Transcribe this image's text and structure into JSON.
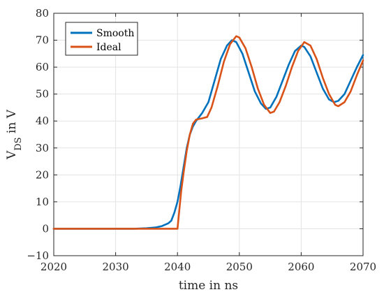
{
  "chart_data": {
    "type": "line",
    "xlabel": "time in ns",
    "ylabel_main": "V",
    "ylabel_sub": "DS",
    "ylabel_tail": " in V",
    "xlim": [
      2020,
      2070
    ],
    "ylim": [
      -10,
      80
    ],
    "xticks": [
      2020,
      2030,
      2040,
      2050,
      2060,
      2070
    ],
    "yticks": [
      -10,
      0,
      10,
      20,
      30,
      40,
      50,
      60,
      70,
      80
    ],
    "grid": true,
    "legend_position": "top-left",
    "series": [
      {
        "name": "Smooth",
        "color": "#0072BD",
        "points": [
          [
            2020,
            0
          ],
          [
            2033,
            0
          ],
          [
            2035,
            0.2
          ],
          [
            2036.5,
            0.5
          ],
          [
            2037.5,
            1
          ],
          [
            2038.5,
            2
          ],
          [
            2039,
            3
          ],
          [
            2039.5,
            6
          ],
          [
            2040,
            10
          ],
          [
            2040.5,
            16
          ],
          [
            2041,
            23
          ],
          [
            2041.5,
            30
          ],
          [
            2042,
            35
          ],
          [
            2042.5,
            38
          ],
          [
            2043,
            40
          ],
          [
            2044,
            43
          ],
          [
            2045,
            47
          ],
          [
            2046,
            55
          ],
          [
            2047,
            63
          ],
          [
            2048,
            68
          ],
          [
            2048.8,
            70
          ],
          [
            2049.5,
            69.3
          ],
          [
            2050.5,
            65
          ],
          [
            2051.5,
            58
          ],
          [
            2052.5,
            51
          ],
          [
            2053.5,
            46.5
          ],
          [
            2054.3,
            44.5
          ],
          [
            2055,
            45
          ],
          [
            2056,
            49
          ],
          [
            2057,
            55
          ],
          [
            2058,
            61
          ],
          [
            2059,
            66
          ],
          [
            2060,
            68
          ],
          [
            2060.5,
            67.5
          ],
          [
            2061.5,
            64
          ],
          [
            2062.5,
            58
          ],
          [
            2063.5,
            52
          ],
          [
            2064.5,
            48
          ],
          [
            2065.3,
            47
          ],
          [
            2066,
            47.5
          ],
          [
            2067,
            50
          ],
          [
            2068,
            55
          ],
          [
            2069,
            60
          ],
          [
            2070,
            64.5
          ]
        ]
      },
      {
        "name": "Ideal",
        "color": "#D95319",
        "points": [
          [
            2020,
            0
          ],
          [
            2039.97,
            0
          ],
          [
            2040,
            0
          ],
          [
            2040.3,
            7
          ],
          [
            2040.6,
            14
          ],
          [
            2041,
            21
          ],
          [
            2041.5,
            29
          ],
          [
            2042,
            35
          ],
          [
            2042.5,
            39
          ],
          [
            2043,
            40.5
          ],
          [
            2044,
            41
          ],
          [
            2044.8,
            41.5
          ],
          [
            2045.5,
            45
          ],
          [
            2046.5,
            53
          ],
          [
            2047.5,
            62
          ],
          [
            2048.5,
            68.5
          ],
          [
            2049.5,
            71.5
          ],
          [
            2050,
            71
          ],
          [
            2051,
            67
          ],
          [
            2052,
            60
          ],
          [
            2053,
            52
          ],
          [
            2054,
            46
          ],
          [
            2055,
            43
          ],
          [
            2055.6,
            43.5
          ],
          [
            2056.5,
            47
          ],
          [
            2057.5,
            53
          ],
          [
            2058.5,
            60
          ],
          [
            2059.5,
            66
          ],
          [
            2060.5,
            69.3
          ],
          [
            2061.5,
            68
          ],
          [
            2062.5,
            63
          ],
          [
            2063.5,
            56
          ],
          [
            2064.5,
            50
          ],
          [
            2065.5,
            46
          ],
          [
            2066,
            45.5
          ],
          [
            2067,
            47
          ],
          [
            2068,
            51
          ],
          [
            2069,
            57
          ],
          [
            2070,
            62.5
          ]
        ]
      }
    ]
  }
}
